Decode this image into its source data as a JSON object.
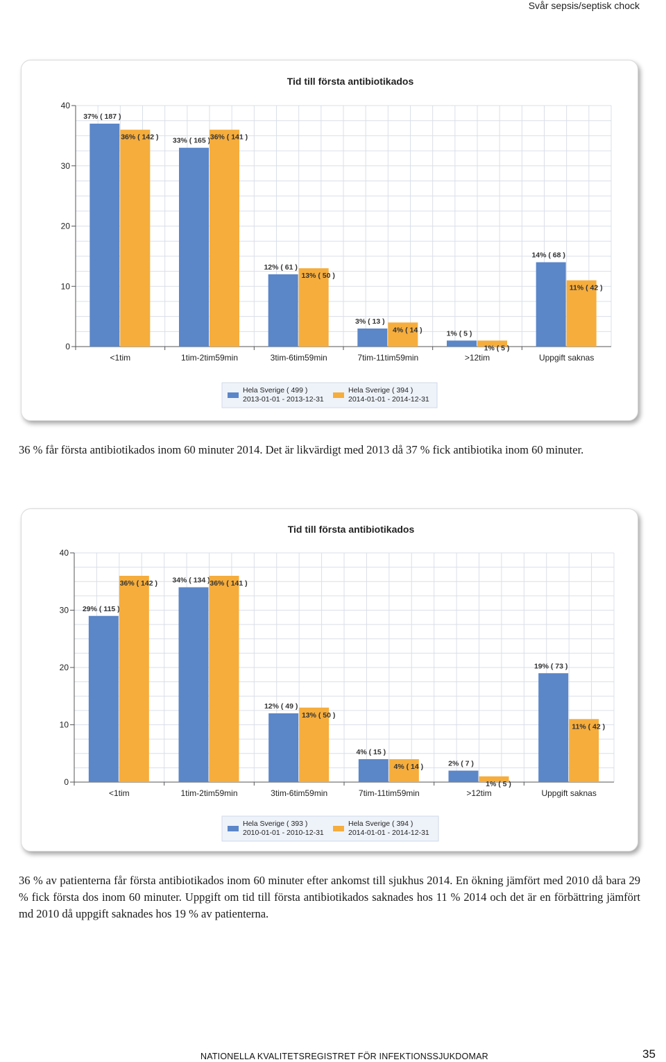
{
  "header": {
    "title": "Svår sepsis/septisk chock"
  },
  "captions": {
    "c1": "36 % får första antibiotikados inom 60 minuter 2014. Det är likvärdigt med 2013 då 37 % fick antibiotika inom 60 minuter.",
    "c2": "36 % av patienterna får första antibiotikados inom 60 minuter efter ankomst till sjukhus 2014. En ökning jämfört med 2010 då bara 29 % fick första dos inom 60 minuter. Uppgift om tid till första antibiotikados saknades hos 11 % 2014 och det är en förbättring jämfört md 2010 då uppgift saknades hos 19 % av patienterna."
  },
  "footer": {
    "org": "NATIONELLA KVALITETSREGISTRET FÖR INFEKTIONSSJUKDOMAR",
    "page": "35"
  },
  "colors": {
    "blue": "#5b86c8",
    "orange": "#f6ad3c"
  },
  "chart_data": [
    {
      "type": "bar",
      "title": "Tid till första antibiotikados",
      "categories": [
        "<1tim",
        "1tim-2tim59min",
        "3tim-6tim59min",
        "7tim-11tim59min",
        ">12tim",
        "Uppgift saknas"
      ],
      "ylim": [
        0,
        40
      ],
      "yticks": [
        0,
        10,
        20,
        30,
        40
      ],
      "grid": true,
      "legend": "bottom",
      "series": [
        {
          "name": "Hela Sverige  ( 499 )",
          "period": "2013-01-01 - 2013-12-31",
          "color": "#5b86c8",
          "values": [
            37,
            33,
            12,
            3,
            1,
            14
          ],
          "labels": [
            "37% ( 187 )",
            "33% ( 165 )",
            "12% ( 61 )",
            "3% ( 13 )",
            "1% ( 5 )",
            "14% ( 68 )"
          ]
        },
        {
          "name": "Hela Sverige  ( 394 )",
          "period": "2014-01-01 - 2014-12-31",
          "color": "#f6ad3c",
          "values": [
            36,
            36,
            13,
            4,
            1,
            11
          ],
          "labels": [
            "36% ( 142 )",
            "36% ( 141 )",
            "13% ( 50 )",
            "4% ( 14 )",
            "1% ( 5 )",
            "11% ( 42 )"
          ]
        }
      ]
    },
    {
      "type": "bar",
      "title": "Tid till första antibiotikados",
      "categories": [
        "<1tim",
        "1tim-2tim59min",
        "3tim-6tim59min",
        "7tim-11tim59min",
        ">12tim",
        "Uppgift saknas"
      ],
      "ylim": [
        0,
        40
      ],
      "yticks": [
        0,
        10,
        20,
        30,
        40
      ],
      "grid": true,
      "legend": "bottom",
      "series": [
        {
          "name": "Hela Sverige  ( 393 )",
          "period": "2010-01-01 - 2010-12-31",
          "color": "#5b86c8",
          "values": [
            29,
            34,
            12,
            4,
            2,
            19
          ],
          "labels": [
            "29% ( 115 )",
            "34% ( 134 )",
            "12% ( 49 )",
            "4% ( 15 )",
            "2% ( 7 )",
            "19% ( 73 )"
          ]
        },
        {
          "name": "Hela Sverige  ( 394 )",
          "period": "2014-01-01 - 2014-12-31",
          "color": "#f6ad3c",
          "values": [
            36,
            36,
            13,
            4,
            1,
            11
          ],
          "labels": [
            "36% ( 142 )",
            "36% ( 141 )",
            "13% ( 50 )",
            "4% ( 14 )",
            "1% ( 5 )",
            "11% ( 42 )"
          ]
        }
      ]
    }
  ]
}
